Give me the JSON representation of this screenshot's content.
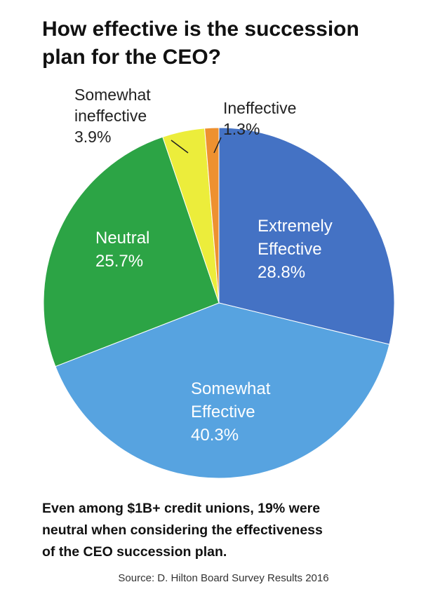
{
  "title": [
    "How effective is the succession",
    "plan for the CEO?"
  ],
  "chart_data": {
    "type": "pie",
    "title": "How effective is the succession plan for the CEO?",
    "slices": [
      {
        "label": [
          "Extremely",
          "Effective"
        ],
        "pct_label": "28.8%",
        "value": 28.8,
        "color": "#4472c4",
        "label_color": "#ffffff"
      },
      {
        "label": [
          "Somewhat",
          "Effective"
        ],
        "pct_label": "40.3%",
        "value": 40.3,
        "color": "#57a3e0",
        "label_color": "#ffffff"
      },
      {
        "label": [
          "Neutral"
        ],
        "pct_label": "25.7%",
        "value": 25.7,
        "color": "#2ca445",
        "label_color": "#ffffff"
      },
      {
        "label": [
          "Somewhat",
          "ineffective"
        ],
        "pct_label": "3.9%",
        "value": 3.9,
        "color": "#eced3b",
        "label_color": "#222222"
      },
      {
        "label": [
          "Ineffective"
        ],
        "pct_label": "1.3%",
        "value": 1.3,
        "color": "#ee9130",
        "label_color": "#222222"
      }
    ],
    "legend": "none"
  },
  "caption": [
    "Even among $1B+ credit unions, 19% were",
    "neutral when considering the effectiveness",
    "of the CEO succession plan."
  ],
  "source": "Source: D. Hilton Board Survey Results 2016"
}
